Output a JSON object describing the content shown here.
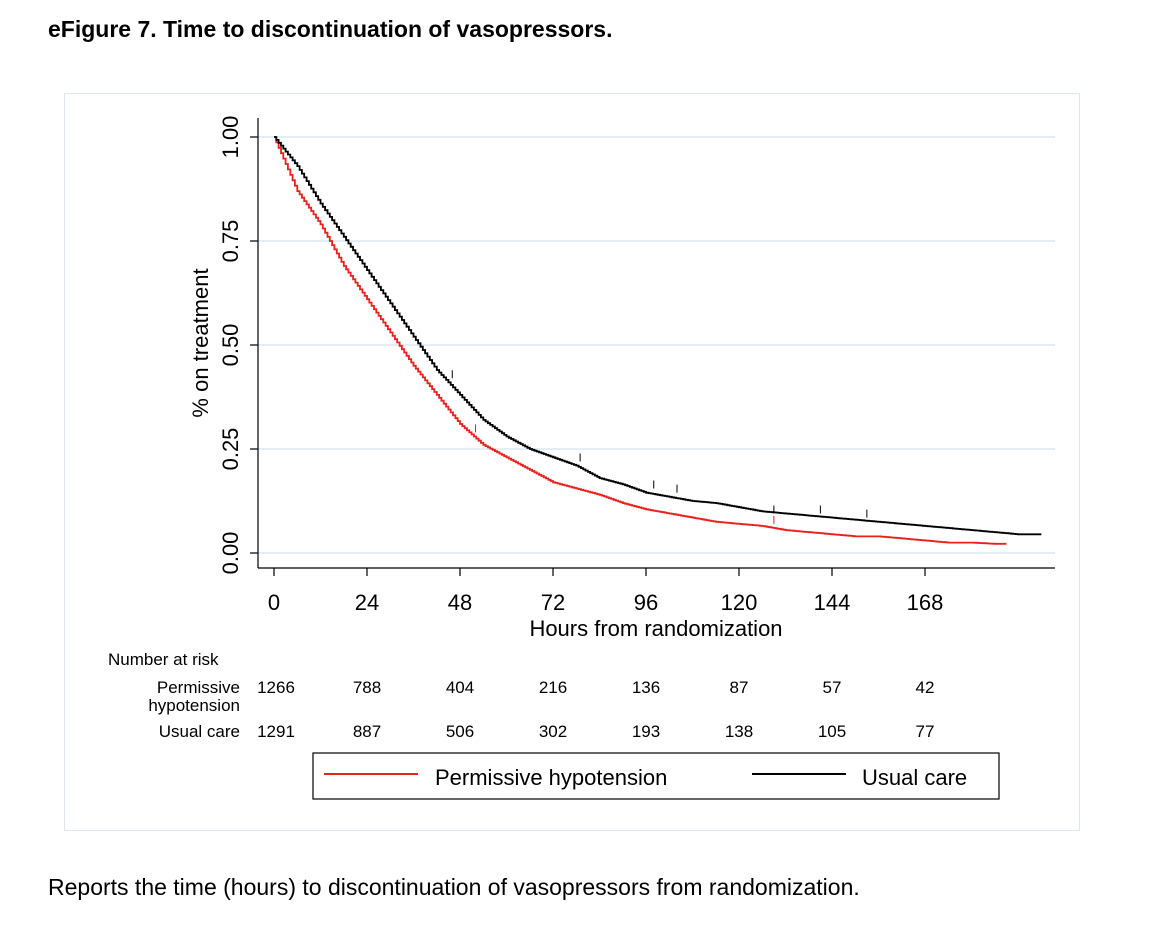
{
  "page": {
    "title": "eFigure 7. Time to discontinuation of vasopressors.",
    "caption": "Reports the time (hours) to discontinuation of vasopressors from randomization."
  },
  "chart_data": {
    "type": "line",
    "title": "",
    "xlabel": "Hours from randomization",
    "ylabel": "% on treatment",
    "xlim": [
      0,
      196
    ],
    "ylim": [
      0,
      1
    ],
    "x_ticks": [
      "0",
      "24",
      "48",
      "72",
      "96",
      "120",
      "144",
      "168"
    ],
    "y_ticks": [
      "0.00",
      "0.25",
      "0.50",
      "0.75",
      "1.00"
    ],
    "grid": true,
    "series": [
      {
        "name": "Permissive hypotension",
        "color": "#e8211f",
        "x": [
          0,
          6,
          12,
          18,
          24,
          30,
          36,
          42,
          48,
          54,
          60,
          66,
          72,
          78,
          84,
          90,
          96,
          102,
          108,
          114,
          120,
          126,
          132,
          138,
          144,
          150,
          156,
          162,
          168,
          174,
          180,
          186,
          189
        ],
        "y": [
          1.0,
          0.87,
          0.79,
          0.69,
          0.61,
          0.53,
          0.45,
          0.38,
          0.31,
          0.26,
          0.23,
          0.2,
          0.17,
          0.155,
          0.14,
          0.12,
          0.105,
          0.095,
          0.085,
          0.075,
          0.07,
          0.065,
          0.055,
          0.05,
          0.045,
          0.04,
          0.04,
          0.035,
          0.03,
          0.025,
          0.025,
          0.022,
          0.022
        ]
      },
      {
        "name": "Usual care",
        "color": "#000000",
        "x": [
          0,
          6,
          12,
          18,
          24,
          30,
          36,
          42,
          48,
          54,
          60,
          66,
          72,
          78,
          84,
          90,
          96,
          102,
          108,
          114,
          120,
          126,
          132,
          138,
          144,
          150,
          156,
          162,
          168,
          174,
          180,
          186,
          192,
          198
        ],
        "y": [
          1.0,
          0.93,
          0.84,
          0.76,
          0.68,
          0.6,
          0.52,
          0.44,
          0.38,
          0.32,
          0.28,
          0.25,
          0.23,
          0.21,
          0.18,
          0.165,
          0.145,
          0.135,
          0.125,
          0.12,
          0.11,
          0.1,
          0.095,
          0.09,
          0.085,
          0.08,
          0.075,
          0.07,
          0.065,
          0.06,
          0.055,
          0.05,
          0.045,
          0.045
        ]
      }
    ],
    "censor_marks": {
      "Permissive hypotension": [
        [
          52,
          0.29
        ],
        [
          129,
          0.07
        ]
      ],
      "Usual care": [
        [
          46,
          0.42
        ],
        [
          79,
          0.22
        ],
        [
          98,
          0.155
        ],
        [
          104,
          0.145
        ],
        [
          129,
          0.095
        ],
        [
          141,
          0.095
        ],
        [
          153,
          0.085
        ]
      ]
    },
    "risk_table": {
      "header": "Number at risk",
      "rows": [
        {
          "label_lines": [
            "Permissive",
            "hypotension"
          ],
          "values": [
            "1266",
            "788",
            "404",
            "216",
            "136",
            "87",
            "57",
            "42"
          ]
        },
        {
          "label_lines": [
            "Usual care"
          ],
          "values": [
            "1291",
            "887",
            "506",
            "302",
            "193",
            "138",
            "105",
            "77"
          ]
        }
      ]
    },
    "legend": {
      "position": "bottom",
      "entries": [
        {
          "label": "Permissive hypotension",
          "color": "#e8211f"
        },
        {
          "label": "Usual care",
          "color": "#000000"
        }
      ]
    }
  }
}
